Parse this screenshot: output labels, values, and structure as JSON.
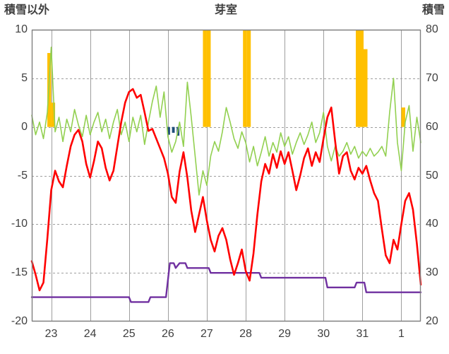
{
  "chart_data": {
    "type": "line",
    "title": "芽室",
    "grid": true,
    "legend": "none",
    "grid_color": "#9e9e9e",
    "border_color": "#808080",
    "text_color": "#3f3f3f",
    "left_axis": {
      "title": "積雪以外",
      "min": -20,
      "max": 10,
      "ticks": [
        10,
        5,
        0,
        -5,
        -10,
        -15,
        -20
      ]
    },
    "right_axis": {
      "title": "積雪",
      "min": 20,
      "max": 80,
      "ticks": [
        80,
        70,
        60,
        50,
        40,
        30,
        20
      ]
    },
    "x_axis": {
      "min": 0,
      "max": 10,
      "labels": [
        "23",
        "24",
        "25",
        "26",
        "27",
        "28",
        "29",
        "30",
        "31",
        "1"
      ]
    },
    "series": [
      {
        "name": "green-line",
        "color": "#92D050",
        "axis": "left",
        "width": 1.6,
        "x_start": 0,
        "x_step": 0.1,
        "values": [
          1.2,
          -0.8,
          0.5,
          -1.2,
          1.5,
          8.2,
          -0.5,
          1.0,
          -1.5,
          0.8,
          -0.5,
          1.8,
          0.2,
          -1.0,
          1.2,
          -0.8,
          0.5,
          1.5,
          -0.5,
          0.8,
          -1.2,
          0.5,
          1.8,
          -0.8,
          0.5,
          -1.5,
          1.0,
          -0.5,
          1.2,
          -1.8,
          0.5,
          2.6,
          4.2,
          1.0,
          3.6,
          -1.0,
          -2.6,
          -1.5,
          0.5,
          -2.0,
          4.6,
          1.0,
          -3.0,
          -7.0,
          -4.5,
          -6.0,
          -3.0,
          -1.5,
          -2.5,
          -0.5,
          2.0,
          0.5,
          -1.2,
          -2.2,
          -0.5,
          -1.6,
          -3.6,
          -2.0,
          -4.0,
          -2.6,
          -1.0,
          -3.0,
          -1.6,
          -2.6,
          -0.6,
          -2.0,
          -1.0,
          -2.8,
          -1.6,
          -0.6,
          -1.8,
          -0.8,
          0.5,
          -1.6,
          -0.6,
          1.5,
          -2.0,
          -3.5,
          -2.0,
          -3.0,
          -2.5,
          -1.6,
          -2.8,
          -2.0,
          -3.2,
          -2.5,
          -3.0,
          -2.2,
          -3.0,
          -2.6,
          -2.0,
          -3.0,
          1.5,
          5.0,
          -1.6,
          -4.5,
          0.5,
          2.2,
          -2.5,
          1.0,
          -1.6
        ]
      },
      {
        "name": "purple-line",
        "color": "#7030A0",
        "axis": "right",
        "width": 2.4,
        "points": [
          [
            0,
            25
          ],
          [
            2.5,
            25
          ],
          [
            2.55,
            24
          ],
          [
            3.0,
            24
          ],
          [
            3.05,
            25
          ],
          [
            3.45,
            25
          ],
          [
            3.55,
            32
          ],
          [
            3.65,
            32
          ],
          [
            3.7,
            31
          ],
          [
            3.8,
            32
          ],
          [
            3.95,
            32
          ],
          [
            4.0,
            31
          ],
          [
            4.55,
            31
          ],
          [
            4.6,
            30
          ],
          [
            5.85,
            30
          ],
          [
            5.9,
            29
          ],
          [
            7.55,
            29
          ],
          [
            7.6,
            27
          ],
          [
            8.3,
            27
          ],
          [
            8.35,
            28
          ],
          [
            8.55,
            28
          ],
          [
            8.6,
            26
          ],
          [
            10,
            26
          ]
        ]
      },
      {
        "name": "red-line",
        "color": "#FF0000",
        "axis": "left",
        "width": 2.6,
        "x_start": 0,
        "x_step": 0.1,
        "values": [
          -13.8,
          -15.2,
          -16.8,
          -16.0,
          -11.5,
          -6.5,
          -4.5,
          -5.6,
          -6.2,
          -4.0,
          -2.0,
          -0.8,
          -0.3,
          -1.5,
          -3.8,
          -5.2,
          -3.5,
          -1.5,
          -2.2,
          -4.2,
          -5.5,
          -4.5,
          -2.0,
          0.5,
          2.5,
          3.6,
          3.9,
          3.0,
          3.3,
          1.5,
          -0.4,
          -0.2,
          -1.2,
          -2.2,
          -3.2,
          -4.8,
          -7.2,
          -7.8,
          -4.6,
          -2.6,
          -5.2,
          -8.6,
          -10.8,
          -9.0,
          -7.2,
          -9.6,
          -11.6,
          -12.8,
          -11.2,
          -10.4,
          -11.6,
          -13.6,
          -15.2,
          -14.0,
          -12.6,
          -14.8,
          -15.8,
          -13.0,
          -9.0,
          -5.6,
          -3.8,
          -4.8,
          -2.8,
          -4.2,
          -2.5,
          -3.8,
          -2.6,
          -4.5,
          -6.5,
          -5.0,
          -3.2,
          -2.2,
          -4.0,
          -2.6,
          -3.6,
          -1.2,
          1.0,
          2.0,
          -1.5,
          -4.8,
          -3.0,
          -2.6,
          -4.5,
          -5.4,
          -4.2,
          -4.8,
          -4.0,
          -5.5,
          -6.8,
          -7.6,
          -10.5,
          -13.2,
          -14.0,
          -11.6,
          -12.6,
          -10.0,
          -7.6,
          -6.8,
          -8.5,
          -12.0,
          -16.2
        ]
      }
    ],
    "bars": [
      {
        "name": "orange-bars",
        "color": "#FFC000",
        "axis": "left",
        "width": 0.1,
        "items": [
          [
            0.45,
            7.6
          ],
          [
            0.55,
            2.5
          ],
          [
            4.45,
            10
          ],
          [
            4.55,
            10
          ],
          [
            5.48,
            10
          ],
          [
            5.58,
            10
          ],
          [
            8.38,
            10
          ],
          [
            8.48,
            10
          ],
          [
            8.58,
            8
          ],
          [
            9.55,
            2
          ]
        ]
      },
      {
        "name": "blue-bars",
        "color": "#1F4E79",
        "axis": "left",
        "width": 0.07,
        "items": [
          [
            3.52,
            -0.8
          ],
          [
            3.64,
            -0.6
          ],
          [
            3.76,
            -0.9
          ]
        ]
      }
    ]
  }
}
